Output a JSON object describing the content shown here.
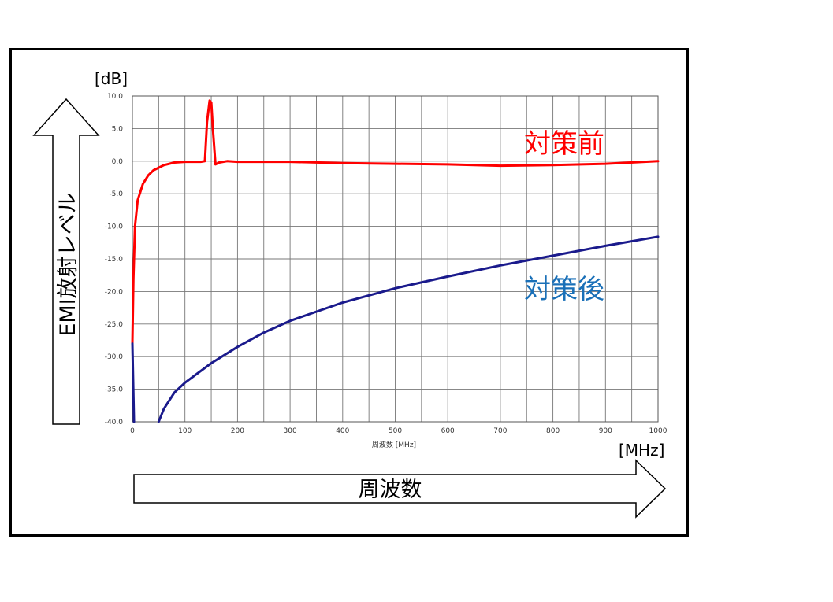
{
  "chart_data": {
    "type": "line",
    "xlabel_small": "周波数 [MHz]",
    "x_unit": "[MHz]",
    "y_unit": "[dB]",
    "y_axis_label": "EMI放射レベル",
    "x_axis_label": "周波数",
    "xlim": [
      0,
      1000
    ],
    "ylim": [
      -40,
      10
    ],
    "x_ticks": [
      0,
      100,
      200,
      300,
      400,
      500,
      600,
      700,
      800,
      900,
      1000
    ],
    "y_ticks": [
      "10.0",
      "5.0",
      "0.0",
      "-5.0",
      "-10.0",
      "-15.0",
      "-20.0",
      "-25.0",
      "-30.0",
      "-35.0",
      "-40.0"
    ],
    "y_tick_values": [
      10,
      5,
      0,
      -5,
      -10,
      -15,
      -20,
      -25,
      -30,
      -35,
      -40
    ],
    "grid": true,
    "series": [
      {
        "name": "対策前",
        "color": "#ff0000",
        "points": [
          [
            0,
            -28
          ],
          [
            2,
            -18
          ],
          [
            5,
            -10
          ],
          [
            10,
            -6
          ],
          [
            20,
            -3.5
          ],
          [
            30,
            -2.2
          ],
          [
            40,
            -1.4
          ],
          [
            50,
            -1.0
          ],
          [
            60,
            -0.6
          ],
          [
            80,
            -0.2
          ],
          [
            100,
            -0.1
          ],
          [
            130,
            -0.1
          ],
          [
            138,
            0
          ],
          [
            142,
            6
          ],
          [
            147,
            9.3
          ],
          [
            150,
            9
          ],
          [
            153,
            5
          ],
          [
            158,
            -0.5
          ],
          [
            165,
            -0.2
          ],
          [
            180,
            0
          ],
          [
            200,
            -0.1
          ],
          [
            300,
            -0.1
          ],
          [
            400,
            -0.3
          ],
          [
            500,
            -0.4
          ],
          [
            600,
            -0.5
          ],
          [
            700,
            -0.7
          ],
          [
            800,
            -0.6
          ],
          [
            900,
            -0.4
          ],
          [
            1000,
            0
          ]
        ]
      },
      {
        "name": "対策後",
        "color": "#1a1a8c",
        "points": [
          [
            0,
            -28
          ],
          [
            3,
            -40
          ]
        ],
        "points2": [
          [
            50,
            -40
          ],
          [
            60,
            -38
          ],
          [
            80,
            -35.5
          ],
          [
            100,
            -34
          ],
          [
            150,
            -31
          ],
          [
            200,
            -28.5
          ],
          [
            250,
            -26.3
          ],
          [
            300,
            -24.5
          ],
          [
            400,
            -21.7
          ],
          [
            500,
            -19.5
          ],
          [
            600,
            -17.7
          ],
          [
            700,
            -16
          ],
          [
            800,
            -14.5
          ],
          [
            900,
            -13
          ],
          [
            1000,
            -11.6
          ]
        ]
      }
    ],
    "series_label_colors": [
      "#ff0000",
      "#1a70b8"
    ]
  }
}
